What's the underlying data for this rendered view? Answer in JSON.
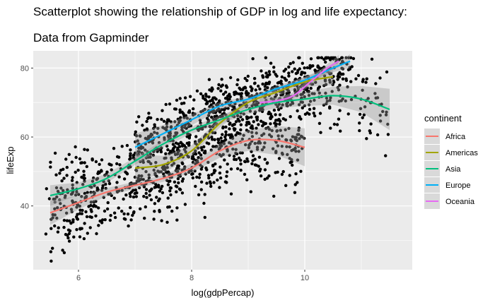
{
  "chart_data": {
    "type": "scatter",
    "title": "Scatterplot showing the relationship of GDP in log and life expectancy:",
    "subtitle": "Data from Gapminder",
    "xlabel": "log(gdpPercap)",
    "ylabel": "lifeExp",
    "xlim": [
      5.2,
      11.9
    ],
    "ylim": [
      21.5,
      85
    ],
    "x_ticks": [
      6,
      8,
      10
    ],
    "y_ticks": [
      40,
      60,
      80
    ],
    "grid": true,
    "legend": {
      "title": "continent",
      "placement": "right"
    },
    "points_color": "#000000",
    "panel_background": "#ebebeb",
    "series": [
      {
        "name": "Africa",
        "color": "#F8766D",
        "x": [
          5.5,
          6.0,
          6.5,
          7.0,
          7.5,
          8.0,
          8.5,
          9.0,
          9.5,
          10.0
        ],
        "y": [
          38,
          41,
          44,
          46,
          48,
          51,
          56,
          59,
          59,
          57
        ],
        "band": [
          3.5,
          2.0,
          1.2,
          1.0,
          1.0,
          1.3,
          2.0,
          3.0,
          4.2,
          5.5
        ]
      },
      {
        "name": "Americas",
        "color": "#A3A500",
        "x": [
          7.0,
          7.5,
          8.0,
          8.5,
          9.0,
          9.5,
          10.0,
          10.5
        ],
        "y": [
          51,
          52,
          56,
          64,
          70,
          73,
          76,
          77.5
        ],
        "band": [
          4.0,
          2.5,
          1.6,
          1.2,
          1.0,
          1.1,
          1.5,
          2.5
        ]
      },
      {
        "name": "Asia",
        "color": "#00BF7D",
        "x": [
          5.5,
          6.0,
          6.5,
          7.0,
          7.5,
          8.0,
          8.5,
          9.0,
          9.5,
          10.0,
          10.5,
          11.0,
          11.5
        ],
        "y": [
          43,
          45,
          48,
          53,
          58,
          62,
          65,
          68,
          70,
          71,
          72,
          71,
          68
        ],
        "band": [
          3.0,
          1.8,
          1.3,
          1.1,
          1.0,
          1.0,
          1.2,
          1.4,
          1.6,
          2.0,
          2.6,
          3.8,
          6.0
        ]
      },
      {
        "name": "Europe",
        "color": "#00B0F6",
        "x": [
          7.0,
          7.5,
          8.0,
          8.5,
          9.0,
          9.5,
          10.0,
          10.5,
          10.8
        ],
        "y": [
          57,
          61,
          65,
          69,
          71,
          74,
          76.5,
          80,
          82
        ],
        "band": [
          4.0,
          2.5,
          1.6,
          1.1,
          0.9,
          0.8,
          0.9,
          1.2,
          2.0
        ]
      },
      {
        "name": "Oceania",
        "color": "#E76BF3",
        "x": [
          9.2,
          9.5,
          9.8,
          10.1,
          10.4,
          10.6
        ],
        "y": [
          70,
          70.5,
          72,
          76,
          80,
          82
        ],
        "band": [
          1.5,
          1.0,
          1.0,
          1.0,
          1.2,
          1.8
        ]
      }
    ]
  }
}
